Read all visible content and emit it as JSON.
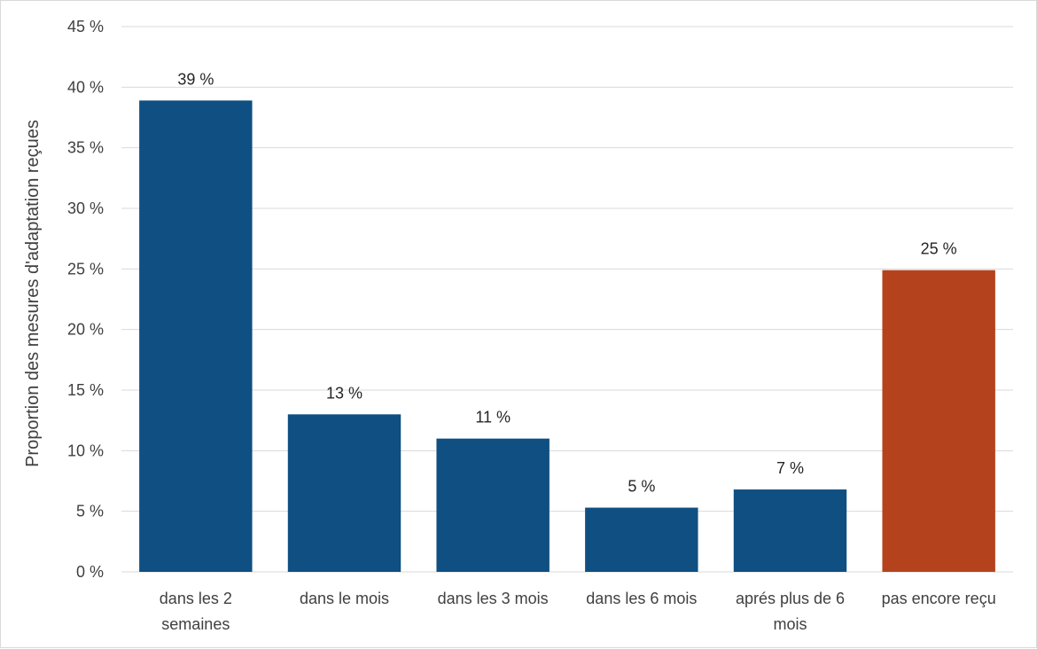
{
  "chart_data": {
    "type": "bar",
    "title": "",
    "xlabel": "",
    "ylabel": "Proportion des mesures d'adaptation reçues",
    "ylim": [
      0,
      45
    ],
    "yticks": [
      0,
      5,
      10,
      15,
      20,
      25,
      30,
      35,
      40,
      45
    ],
    "ytick_labels": [
      "0 %",
      "5 %",
      "10 %",
      "15 %",
      "20 %",
      "25 %",
      "30 %",
      "35 %",
      "40 %",
      "45 %"
    ],
    "grid": true,
    "legend": "none",
    "categories": [
      [
        "dans les 2",
        "semaines"
      ],
      [
        "dans le mois"
      ],
      [
        "dans les 3 mois"
      ],
      [
        "dans les 6 mois"
      ],
      [
        "aprés plus de 6",
        "mois"
      ],
      [
        "pas encore reçu"
      ]
    ],
    "values": [
      38.9,
      13.0,
      11.0,
      5.3,
      6.8,
      24.9
    ],
    "data_labels": [
      "39 %",
      "13 %",
      "11 %",
      "5 %",
      "7 %",
      "25 %"
    ],
    "colors": [
      "#0f4f82",
      "#0f4f82",
      "#0f4f82",
      "#0f4f82",
      "#0f4f82",
      "#b4431d"
    ],
    "gridline_color": "#d9d9d9"
  }
}
